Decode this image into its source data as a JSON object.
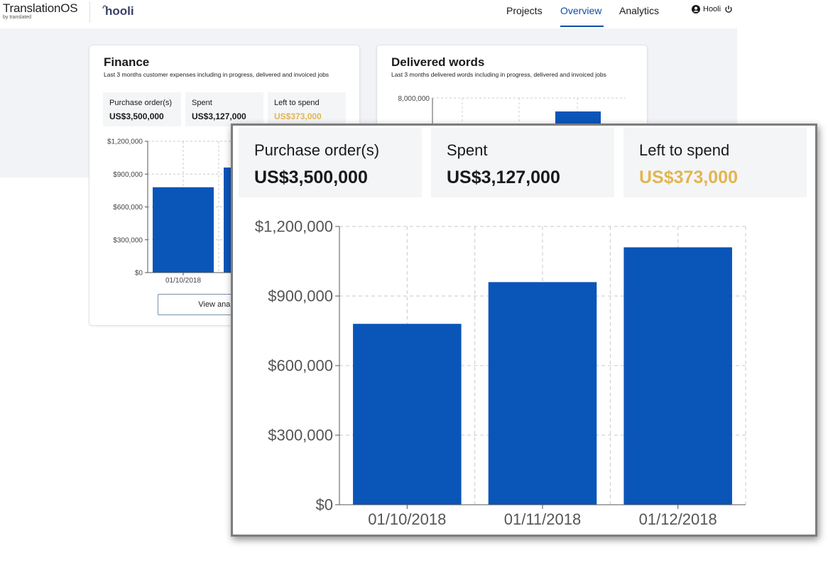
{
  "header": {
    "app_name": "TranslationOS",
    "app_sub": "by translated",
    "client_logo": "hooli",
    "nav": [
      "Projects",
      "Overview",
      "Analytics"
    ],
    "active_nav": "Overview",
    "user_name": "Hooli",
    "icons": [
      "user-icon",
      "power-icon"
    ]
  },
  "finance": {
    "title": "Finance",
    "subtitle": "Last 3 months customer expenses including in progress, delivered and invoiced jobs",
    "kpis": [
      {
        "label": "Purchase order(s)",
        "value": "US$3,500,000"
      },
      {
        "label": "Spent",
        "value": "US$3,127,000"
      },
      {
        "label": "Left to spend",
        "value": "US$373,000",
        "color": "#e2b64f"
      }
    ],
    "view_button": "View analytics"
  },
  "delivered": {
    "title": "Delivered words",
    "subtitle": "Last 3 months delivered words including in progress, delivered and invoiced jobs",
    "y_top_label": "8,000,000"
  },
  "colors": {
    "bar": "#0a55b8",
    "accent": "#0a4fa8",
    "warning": "#e2b64f"
  },
  "chart_data": {
    "type": "bar",
    "categories": [
      "01/10/2018",
      "01/11/2018",
      "01/12/2018"
    ],
    "values": [
      780000,
      960000,
      1110000
    ],
    "ylim": [
      0,
      1200000
    ],
    "yticks": [
      0,
      300000,
      600000,
      900000,
      1200000
    ],
    "ytick_labels": [
      "$0",
      "$300,000",
      "$600,000",
      "$900,000",
      "$1,200,000"
    ],
    "grid": true,
    "xlabel": "",
    "ylabel": ""
  }
}
